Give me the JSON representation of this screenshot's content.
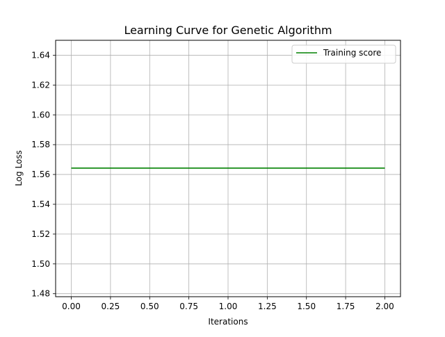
{
  "chart_data": {
    "type": "line",
    "title": "Learning Curve for Genetic Algorithm",
    "xlabel": "Iterations",
    "ylabel": "Log Loss",
    "xlim": [
      -0.1,
      2.1
    ],
    "ylim": [
      1.478,
      1.65
    ],
    "x_ticks": [
      0.0,
      0.25,
      0.5,
      0.75,
      1.0,
      1.25,
      1.5,
      1.75,
      2.0
    ],
    "x_tick_labels": [
      "0.00",
      "0.25",
      "0.50",
      "0.75",
      "1.00",
      "1.25",
      "1.50",
      "1.75",
      "2.00"
    ],
    "y_ticks": [
      1.48,
      1.5,
      1.52,
      1.54,
      1.56,
      1.58,
      1.6,
      1.62,
      1.64
    ],
    "y_tick_labels": [
      "1.48",
      "1.50",
      "1.52",
      "1.54",
      "1.56",
      "1.58",
      "1.60",
      "1.62",
      "1.64"
    ],
    "grid": true,
    "legend_position": "top-right",
    "series": [
      {
        "name": "Training score",
        "color": "#008000",
        "x": [
          0,
          1,
          2
        ],
        "y": [
          1.5643,
          1.5643,
          1.5643
        ]
      }
    ]
  }
}
